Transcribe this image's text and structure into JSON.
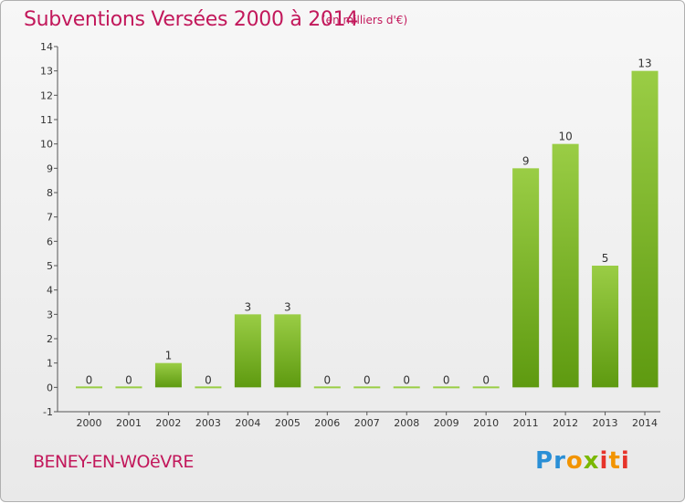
{
  "header": {
    "title": "Subventions Versées 2000 à 2014",
    "units": "(en milliers d'€)"
  },
  "footer": {
    "commune": "BENEY-EN-WOëVRE",
    "logo_text": "Proxiti"
  },
  "colors": {
    "title": "#c2185b",
    "bar_light": "#9acd45",
    "bar_dark": "#5e9a10",
    "logo": [
      "#2a8fd6",
      "#f29400",
      "#7ab800",
      "#e6332a"
    ]
  },
  "chart_data": {
    "type": "bar",
    "categories": [
      "2000",
      "2001",
      "2002",
      "2003",
      "2004",
      "2005",
      "2006",
      "2007",
      "2008",
      "2009",
      "2010",
      "2011",
      "2012",
      "2013",
      "2014"
    ],
    "values": [
      0,
      0,
      1,
      0,
      3,
      3,
      0,
      0,
      0,
      0,
      0,
      9,
      10,
      5,
      13
    ],
    "data_labels": [
      "0",
      "0",
      "1",
      "0",
      "3",
      "3",
      "0",
      "0",
      "0",
      "0",
      "0",
      "9",
      "10",
      "5",
      "13"
    ],
    "yticks": [
      -1,
      0,
      1,
      2,
      3,
      4,
      5,
      6,
      7,
      8,
      9,
      10,
      11,
      12,
      13,
      14
    ],
    "ylim": [
      -1,
      14
    ],
    "grid": false,
    "legend": "none"
  }
}
